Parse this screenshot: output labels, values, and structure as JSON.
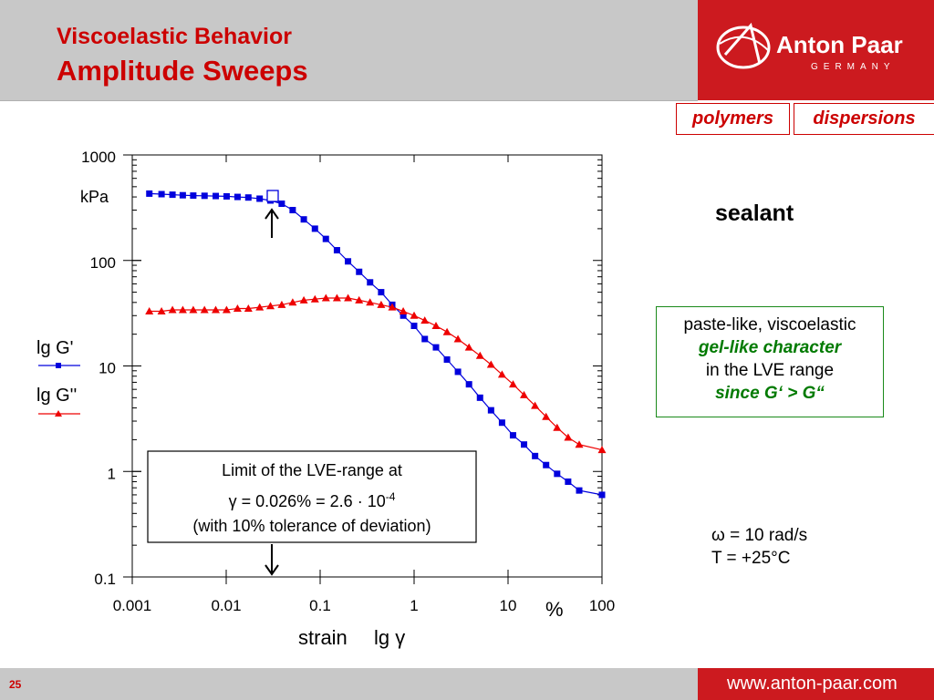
{
  "header": {
    "title_line1": "Viscoelastic Behavior",
    "title_line2": "Amplitude Sweeps",
    "logo_name": "Anton Paar",
    "logo_country": "GERMANY"
  },
  "tags": [
    "polymers",
    "dispersions"
  ],
  "sample": "sealant",
  "note": {
    "line1": "paste-like, viscoelastic",
    "line2": "gel-like character",
    "line3": "in the LVE range",
    "line4": "since G‘ > G“"
  },
  "conditions": {
    "omega": "ω = 10 rad/s",
    "temp": "T = +25°C"
  },
  "annotation": {
    "line1": "Limit of the LVE-range at",
    "line2_prefix": "γ = 0.026% = 2.6 · 10",
    "line2_exp": "-4",
    "line3": "(with 10% tolerance of deviation)"
  },
  "footer": {
    "page": "25",
    "url": "www.anton-paar.com"
  },
  "colors": {
    "brand_red": "#cc1a1f",
    "title_red": "#cc0000",
    "gprime": "#0000dd",
    "gdoubleprime": "#ee0000",
    "note_border": "#1a8a1a",
    "header_gray": "#c8c8c8"
  },
  "chart_data": {
    "type": "scatter",
    "x_scale": "log",
    "y_scale": "log",
    "xlim": [
      0.001,
      100
    ],
    "ylim": [
      0.1,
      1000
    ],
    "x_tick_labels": [
      "0.001",
      "0.01",
      "0.1",
      "1",
      "10",
      "100"
    ],
    "x_unit": "%",
    "y_tick_labels": [
      "1000",
      "100",
      "10",
      "1",
      "0.1"
    ],
    "y_unit": "kPa",
    "xlabel_text": "strain",
    "xlabel_symbol": "lg γ",
    "lve_limit_strain": 0.026,
    "series": [
      {
        "name": "lg G'",
        "marker": "square",
        "color": "#0000dd",
        "x": [
          0.00152,
          0.00205,
          0.00268,
          0.00345,
          0.00446,
          0.00588,
          0.00774,
          0.0101,
          0.0132,
          0.0172,
          0.0227,
          0.0296,
          0.039,
          0.051,
          0.067,
          0.088,
          0.115,
          0.151,
          0.198,
          0.26,
          0.34,
          0.446,
          0.585,
          0.767,
          1.0,
          1.3,
          1.71,
          2.24,
          2.93,
          3.84,
          5.03,
          6.59,
          8.63,
          11.3,
          14.8,
          19.4,
          25.4,
          33.3,
          43.6,
          57.2,
          100
        ],
        "y": [
          430,
          425,
          420,
          415,
          412,
          410,
          408,
          405,
          400,
          395,
          385,
          370,
          345,
          300,
          245,
          200,
          160,
          125,
          98,
          78,
          62,
          50,
          38,
          30,
          24,
          18,
          15,
          11.5,
          8.8,
          6.7,
          5.0,
          3.8,
          2.9,
          2.2,
          1.8,
          1.4,
          1.15,
          0.95,
          0.8,
          0.66,
          0.6
        ]
      },
      {
        "name": "lg G''",
        "marker": "triangle",
        "color": "#ee0000",
        "x": [
          0.00152,
          0.00205,
          0.00268,
          0.00345,
          0.00446,
          0.00588,
          0.00774,
          0.0101,
          0.0132,
          0.0172,
          0.0227,
          0.0296,
          0.039,
          0.051,
          0.067,
          0.088,
          0.115,
          0.151,
          0.198,
          0.26,
          0.34,
          0.446,
          0.585,
          0.767,
          1.0,
          1.3,
          1.71,
          2.24,
          2.93,
          3.84,
          5.03,
          6.59,
          8.63,
          11.3,
          14.8,
          19.4,
          25.4,
          33.3,
          43.6,
          57.2,
          100
        ],
        "y": [
          33,
          33,
          34,
          34,
          34,
          34,
          34,
          34,
          35,
          35,
          36,
          37,
          38,
          40,
          42,
          43,
          44,
          44,
          44,
          42,
          40,
          38,
          36,
          33,
          30,
          27,
          24,
          21,
          18,
          15,
          12.5,
          10.3,
          8.3,
          6.7,
          5.3,
          4.2,
          3.3,
          2.6,
          2.1,
          1.8,
          1.6
        ]
      }
    ]
  }
}
